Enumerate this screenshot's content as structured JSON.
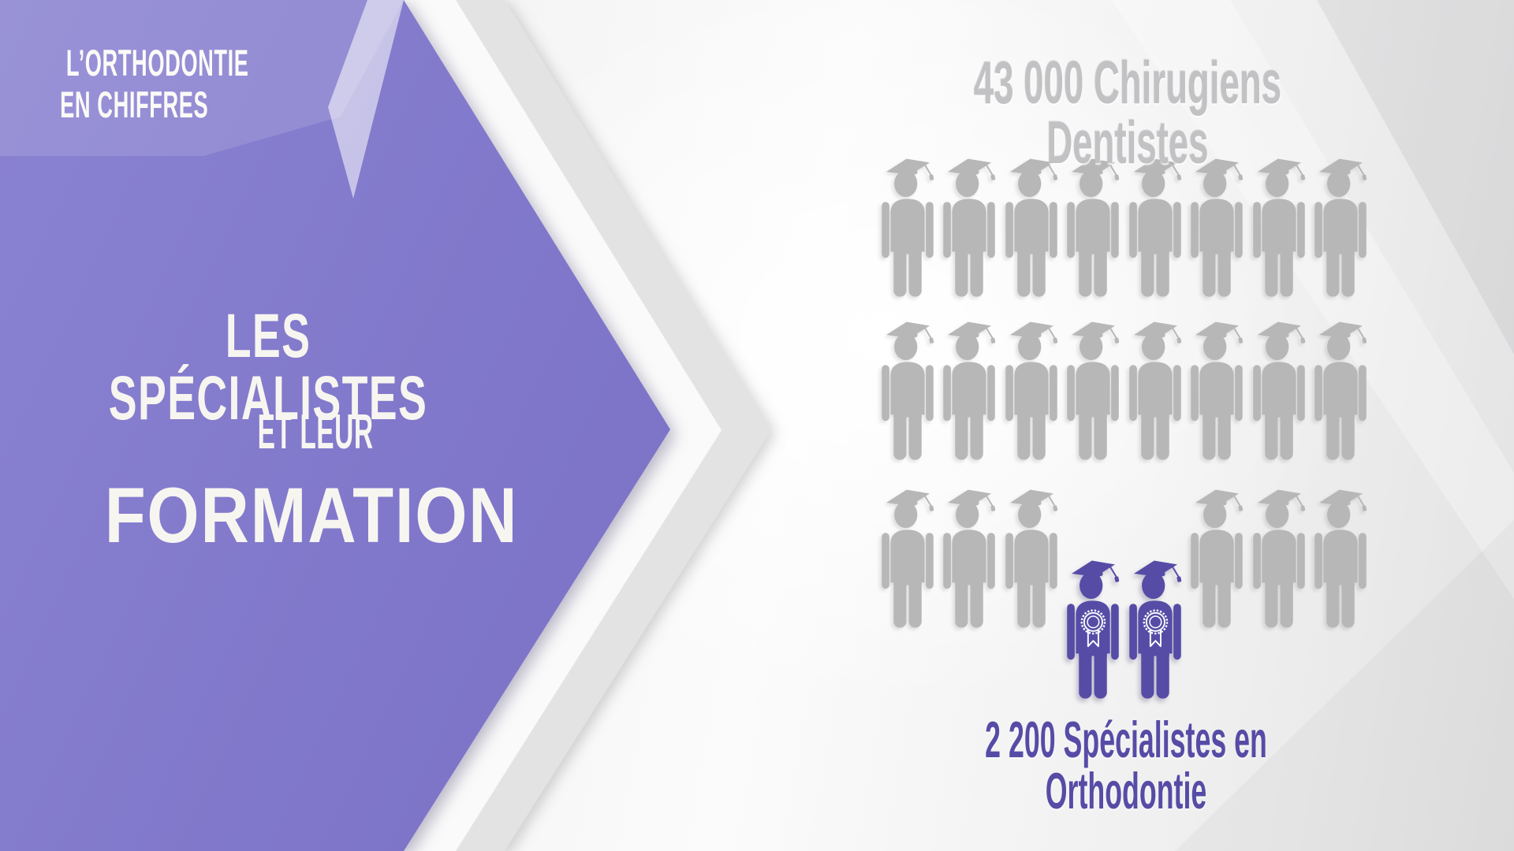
{
  "slide": {
    "eyebrow": {
      "line1": "L’ORTHODONTIE",
      "line2": "EN CHIFFRES"
    },
    "headline": {
      "line1": "LES SPÉCIALISTES",
      "line2": "ET LEUR",
      "line3": "FORMATION"
    }
  },
  "chart_data": {
    "type": "pictogram",
    "title": "43 000 Chirugiens Dentistes",
    "caption": "2 200 Spécialistes en Orthodontie",
    "series": [
      {
        "name": "Chirugiens Dentistes",
        "value": 43000,
        "icon": "graduate-person",
        "icon_count": 22,
        "color": "#b7b7b7"
      },
      {
        "name": "Spécialistes en Orthodontie",
        "value": 2200,
        "icon": "graduate-person-medal",
        "icon_count": 2,
        "color": "#564ca6"
      }
    ],
    "grid": {
      "columns": 8,
      "rows": [
        [
          "gray",
          "gray",
          "gray",
          "gray",
          "gray",
          "gray",
          "gray",
          "gray"
        ],
        [
          "gray",
          "gray",
          "gray",
          "gray",
          "gray",
          "gray",
          "gray",
          "gray"
        ],
        [
          "gray",
          "gray",
          "gray",
          "purple",
          "purple",
          "gray",
          "gray",
          "gray"
        ]
      ]
    },
    "colors": {
      "gray_icon": "#b7b7b7",
      "purple_icon": "#564ca6",
      "title_gray": "#c2c2c4",
      "caption_purple": "#564ca6",
      "panel_purple": "#7e75c9"
    }
  }
}
